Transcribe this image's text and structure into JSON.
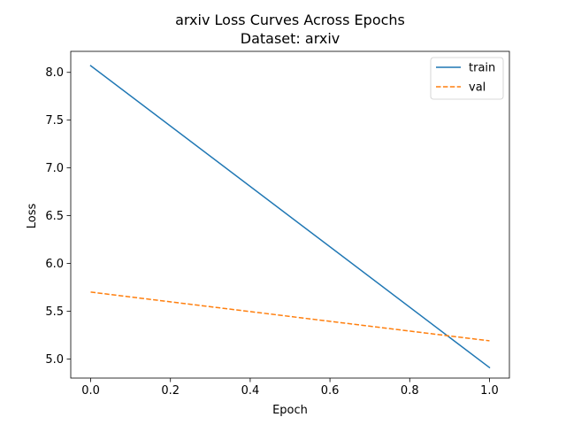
{
  "chart_data": {
    "type": "line",
    "title": "arxiv Loss Curves Across Epochs",
    "subtitle": "Dataset: arxiv",
    "xlabel": "Epoch",
    "ylabel": "Loss",
    "xlim": [
      -0.05,
      1.05
    ],
    "ylim": [
      4.8,
      8.22
    ],
    "xticks": [
      0.0,
      0.2,
      0.4,
      0.6,
      0.8,
      1.0
    ],
    "xtick_labels": [
      "0.0",
      "0.2",
      "0.4",
      "0.6",
      "0.8",
      "1.0"
    ],
    "yticks": [
      5.0,
      5.5,
      6.0,
      6.5,
      7.0,
      7.5,
      8.0
    ],
    "ytick_labels": [
      "5.0",
      "5.5",
      "6.0",
      "6.5",
      "7.0",
      "7.5",
      "8.0"
    ],
    "grid": false,
    "legend_position": "top-right",
    "x": [
      0,
      1
    ],
    "series": [
      {
        "name": "train",
        "values": [
          8.07,
          4.91
        ],
        "color": "#1f77b4",
        "style": "solid"
      },
      {
        "name": "val",
        "values": [
          5.7,
          5.19
        ],
        "color": "#ff7f0e",
        "style": "dashed"
      }
    ]
  }
}
